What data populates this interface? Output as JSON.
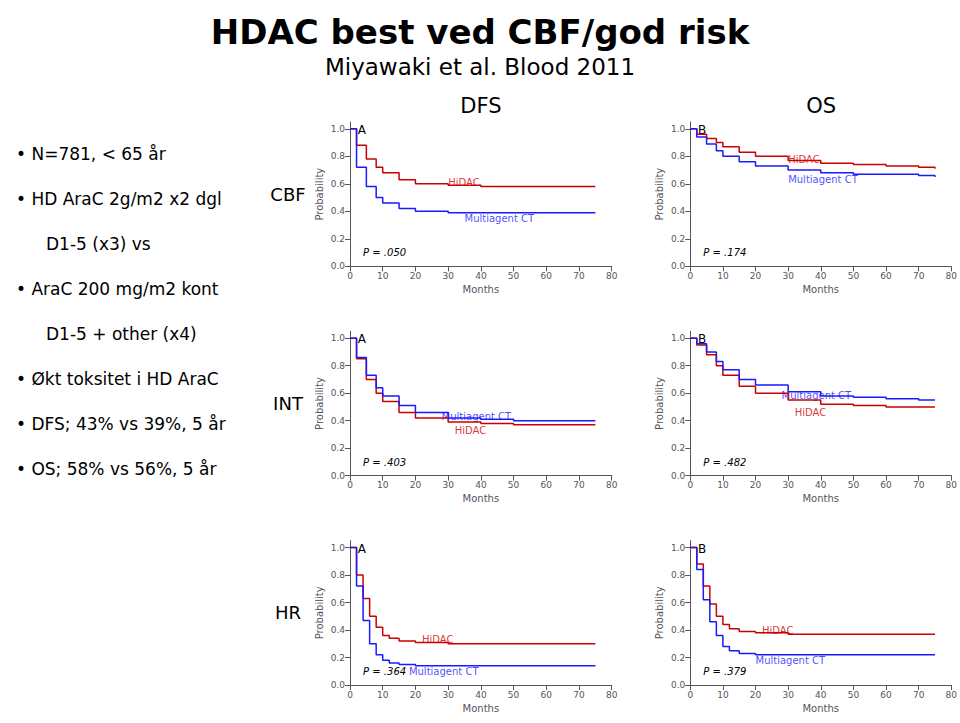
{
  "title": "HDAC best ved CBF/god risk",
  "subtitle": "Miyawaki et al. Blood 2011",
  "annotations": [
    [
      "• N=781, < 65 år"
    ],
    [
      "• HD AraC 2g/m2 x2 dgl",
      "D1-5 (x3) vs"
    ],
    [
      "• AraC 200 mg/m2 kont",
      "D1-5 + other (x4)"
    ],
    [
      "• Økt toksitet i HD AraC"
    ],
    [
      "• DFS; 43% vs 39%, 5 år"
    ],
    [
      "• OS; 58% vs 56%, 5 år"
    ]
  ],
  "columns": [
    "DFS",
    "OS"
  ],
  "rows": [
    "CBF",
    "INT",
    "HR"
  ],
  "chart_data": [
    {
      "type": "line",
      "line_style": "step",
      "grid": false,
      "legend": false,
      "panel_label": "A",
      "note": "P = .050",
      "x_label": "Months",
      "y_label": "Probability",
      "xlim": [
        0,
        80
      ],
      "xticks": [
        0,
        10,
        20,
        30,
        40,
        50,
        60,
        70,
        80
      ],
      "ylim": [
        0,
        1.05
      ],
      "yticks": [
        {
          "value": 0,
          "label": "0.0"
        },
        0.2,
        0.4,
        0.6,
        0.8,
        {
          "value": 1,
          "label": "1.0"
        }
      ],
      "series": [
        {
          "name": "HiDAC",
          "color": "#cc0000",
          "x": [
            0,
            2,
            5,
            8,
            10,
            15,
            20,
            30,
            40,
            50,
            60,
            70,
            75
          ],
          "values": [
            1.0,
            0.88,
            0.78,
            0.72,
            0.68,
            0.63,
            0.6,
            0.59,
            0.58,
            0.58,
            0.58,
            0.58,
            0.58
          ]
        },
        {
          "name": "Multiagent CT",
          "color": "#1a1aff",
          "x": [
            0,
            2,
            5,
            8,
            10,
            15,
            20,
            30,
            40,
            50,
            60,
            70,
            75
          ],
          "values": [
            1.0,
            0.72,
            0.58,
            0.5,
            0.46,
            0.42,
            0.4,
            0.39,
            0.39,
            0.39,
            0.39,
            0.39,
            0.39
          ]
        }
      ],
      "annotations": [
        {
          "text": "HiDAC",
          "x": 30,
          "y": 0.61,
          "color": "#cc0000"
        },
        {
          "text": "Multiagent CT",
          "x": 35,
          "y": 0.35,
          "color": "#1a1aff"
        }
      ]
    },
    {
      "type": "line",
      "line_style": "step",
      "grid": false,
      "legend": false,
      "panel_label": "B",
      "note": "P = .174",
      "x_label": "Months",
      "y_label": "Probability",
      "xlim": [
        0,
        80
      ],
      "xticks": [
        0,
        10,
        20,
        30,
        40,
        50,
        60,
        70,
        80
      ],
      "ylim": [
        0,
        1.05
      ],
      "yticks": [
        {
          "value": 0,
          "label": "0.0"
        },
        0.2,
        0.4,
        0.6,
        0.8,
        {
          "value": 1,
          "label": "1.0"
        }
      ],
      "series": [
        {
          "name": "HiDAC",
          "color": "#cc0000",
          "x": [
            0,
            2,
            5,
            8,
            10,
            15,
            20,
            30,
            40,
            50,
            60,
            70,
            75
          ],
          "values": [
            1.0,
            0.96,
            0.93,
            0.9,
            0.87,
            0.83,
            0.8,
            0.77,
            0.75,
            0.74,
            0.73,
            0.72,
            0.71
          ]
        },
        {
          "name": "Multiagent CT",
          "color": "#1a1aff",
          "x": [
            0,
            2,
            5,
            8,
            10,
            15,
            20,
            30,
            40,
            50,
            60,
            70,
            75
          ],
          "values": [
            1.0,
            0.94,
            0.89,
            0.84,
            0.8,
            0.76,
            0.73,
            0.7,
            0.68,
            0.67,
            0.67,
            0.66,
            0.65
          ]
        }
      ],
      "annotations": [
        {
          "text": "HiDAC",
          "x": 30,
          "y": 0.78,
          "color": "#cc0000"
        },
        {
          "text": "Multiagent CT",
          "x": 30,
          "y": 0.63,
          "color": "#1a1aff"
        }
      ]
    },
    {
      "type": "line",
      "line_style": "step",
      "grid": false,
      "legend": false,
      "panel_label": "A",
      "note": "P = .403",
      "x_label": "Months",
      "y_label": "Probability",
      "xlim": [
        0,
        80
      ],
      "xticks": [
        0,
        10,
        20,
        30,
        40,
        50,
        60,
        70,
        80
      ],
      "ylim": [
        0,
        1.05
      ],
      "yticks": [
        {
          "value": 0,
          "label": "0.0"
        },
        0.2,
        0.4,
        0.6,
        0.8,
        {
          "value": 1,
          "label": "1.0"
        }
      ],
      "series": [
        {
          "name": "HiDAC",
          "color": "#cc0000",
          "x": [
            0,
            2,
            5,
            8,
            10,
            15,
            20,
            30,
            40,
            50,
            60,
            70,
            75
          ],
          "values": [
            1.0,
            0.85,
            0.7,
            0.6,
            0.54,
            0.46,
            0.42,
            0.39,
            0.38,
            0.37,
            0.37,
            0.37,
            0.37
          ]
        },
        {
          "name": "Multiagent CT",
          "color": "#1a1aff",
          "x": [
            0,
            2,
            5,
            8,
            10,
            15,
            20,
            30,
            40,
            50,
            60,
            70,
            75
          ],
          "values": [
            1.0,
            0.86,
            0.73,
            0.64,
            0.58,
            0.51,
            0.46,
            0.42,
            0.41,
            0.4,
            0.4,
            0.4,
            0.4
          ]
        }
      ],
      "annotations": [
        {
          "text": "HiDAC",
          "x": 32,
          "y": 0.33,
          "color": "#cc0000"
        },
        {
          "text": "Multiagent CT",
          "x": 28,
          "y": 0.43,
          "color": "#1a1aff"
        }
      ]
    },
    {
      "type": "line",
      "line_style": "step",
      "grid": false,
      "legend": false,
      "panel_label": "B",
      "note": "P = .482",
      "x_label": "Months",
      "y_label": "Probability",
      "xlim": [
        0,
        80
      ],
      "xticks": [
        0,
        10,
        20,
        30,
        40,
        50,
        60,
        70,
        80
      ],
      "ylim": [
        0,
        1.05
      ],
      "yticks": [
        {
          "value": 0,
          "label": "0.0"
        },
        0.2,
        0.4,
        0.6,
        0.8,
        {
          "value": 1,
          "label": "1.0"
        }
      ],
      "series": [
        {
          "name": "HiDAC",
          "color": "#cc0000",
          "x": [
            0,
            2,
            5,
            8,
            10,
            15,
            20,
            30,
            40,
            50,
            60,
            70,
            75
          ],
          "values": [
            1.0,
            0.95,
            0.88,
            0.8,
            0.73,
            0.65,
            0.6,
            0.55,
            0.52,
            0.51,
            0.5,
            0.5,
            0.5
          ]
        },
        {
          "name": "Multiagent CT",
          "color": "#1a1aff",
          "x": [
            0,
            2,
            5,
            8,
            10,
            15,
            20,
            30,
            40,
            50,
            60,
            70,
            75
          ],
          "values": [
            1.0,
            0.96,
            0.9,
            0.83,
            0.77,
            0.7,
            0.66,
            0.61,
            0.58,
            0.57,
            0.56,
            0.55,
            0.55
          ]
        }
      ],
      "annotations": [
        {
          "text": "HiDAC",
          "x": 32,
          "y": 0.46,
          "color": "#cc0000"
        },
        {
          "text": "Multiagent CT",
          "x": 28,
          "y": 0.58,
          "color": "#1a1aff"
        }
      ]
    },
    {
      "type": "line",
      "line_style": "step",
      "grid": false,
      "legend": false,
      "panel_label": "A",
      "note": "P = .364",
      "x_label": "Months",
      "y_label": "Probability",
      "xlim": [
        0,
        80
      ],
      "xticks": [
        0,
        10,
        20,
        30,
        40,
        50,
        60,
        70,
        80
      ],
      "ylim": [
        0,
        1.05
      ],
      "yticks": [
        {
          "value": 0,
          "label": "0.0"
        },
        0.2,
        0.4,
        0.6,
        0.8,
        {
          "value": 1,
          "label": "1.0"
        }
      ],
      "series": [
        {
          "name": "HiDAC",
          "color": "#cc0000",
          "x": [
            0,
            2,
            4,
            6,
            8,
            10,
            12,
            15,
            20,
            30,
            40,
            50,
            60,
            70,
            75
          ],
          "values": [
            1.0,
            0.8,
            0.63,
            0.5,
            0.42,
            0.36,
            0.34,
            0.32,
            0.31,
            0.3,
            0.3,
            0.3,
            0.3,
            0.3,
            0.3
          ]
        },
        {
          "name": "Multiagent CT",
          "color": "#1a1aff",
          "x": [
            0,
            2,
            4,
            6,
            8,
            10,
            12,
            15,
            20,
            30,
            40,
            50,
            60,
            70,
            75
          ],
          "values": [
            1.0,
            0.72,
            0.47,
            0.3,
            0.22,
            0.18,
            0.16,
            0.15,
            0.14,
            0.14,
            0.14,
            0.14,
            0.14,
            0.14,
            0.14
          ]
        }
      ],
      "annotations": [
        {
          "text": "HiDAC",
          "x": 22,
          "y": 0.33,
          "color": "#cc0000"
        },
        {
          "text": "Multiagent CT",
          "x": 18,
          "y": 0.1,
          "color": "#1a1aff"
        }
      ]
    },
    {
      "type": "line",
      "line_style": "step",
      "grid": false,
      "legend": false,
      "panel_label": "B",
      "note": "P = .379",
      "x_label": "Months",
      "y_label": "Probability",
      "xlim": [
        0,
        80
      ],
      "xticks": [
        0,
        10,
        20,
        30,
        40,
        50,
        60,
        70,
        80
      ],
      "ylim": [
        0,
        1.05
      ],
      "yticks": [
        {
          "value": 0,
          "label": "0.0"
        },
        0.2,
        0.4,
        0.6,
        0.8,
        {
          "value": 1,
          "label": "1.0"
        }
      ],
      "series": [
        {
          "name": "HiDAC",
          "color": "#cc0000",
          "x": [
            0,
            2,
            4,
            6,
            8,
            10,
            12,
            15,
            20,
            30,
            40,
            50,
            60,
            70,
            75
          ],
          "values": [
            1.0,
            0.88,
            0.72,
            0.59,
            0.5,
            0.44,
            0.41,
            0.39,
            0.38,
            0.37,
            0.37,
            0.37,
            0.37,
            0.37,
            0.37
          ]
        },
        {
          "name": "Multiagent CT",
          "color": "#1a1aff",
          "x": [
            0,
            2,
            4,
            6,
            8,
            10,
            12,
            15,
            20,
            30,
            40,
            50,
            60,
            70,
            75
          ],
          "values": [
            1.0,
            0.84,
            0.62,
            0.46,
            0.36,
            0.28,
            0.25,
            0.23,
            0.22,
            0.22,
            0.22,
            0.22,
            0.22,
            0.22,
            0.22
          ]
        }
      ],
      "annotations": [
        {
          "text": "HiDAC",
          "x": 22,
          "y": 0.4,
          "color": "#cc0000"
        },
        {
          "text": "Multiagent CT",
          "x": 20,
          "y": 0.18,
          "color": "#1a1aff"
        }
      ]
    }
  ]
}
